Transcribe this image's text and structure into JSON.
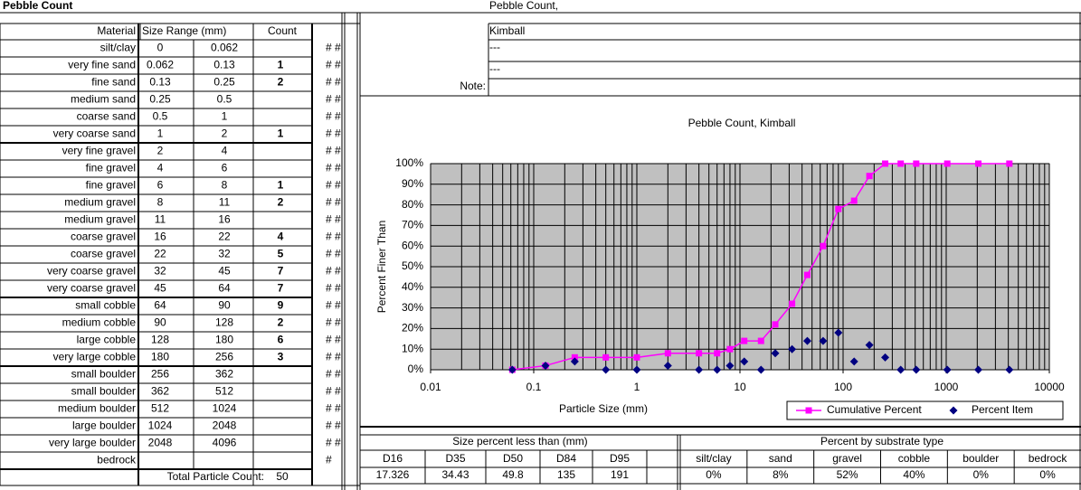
{
  "title": "Pebble Count",
  "table": {
    "header": [
      "Material",
      "Size Range (mm)",
      "Count"
    ],
    "rows": [
      {
        "material": "silt/clay",
        "min": 0,
        "max": 0.062,
        "count": null
      },
      {
        "material": "very fine sand",
        "min": 0.062,
        "max": 0.13,
        "count": 1
      },
      {
        "material": "fine sand",
        "min": 0.13,
        "max": 0.25,
        "count": 2
      },
      {
        "material": "medium sand",
        "min": 0.25,
        "max": 0.5,
        "count": null
      },
      {
        "material": "coarse sand",
        "min": 0.5,
        "max": 1,
        "count": null
      },
      {
        "material": "very coarse sand",
        "min": 1,
        "max": 2,
        "count": 1
      },
      {
        "material": "very fine gravel",
        "min": 2,
        "max": 4,
        "count": null
      },
      {
        "material": "fine gravel",
        "min": 4,
        "max": 6,
        "count": null
      },
      {
        "material": "fine gravel",
        "min": 6,
        "max": 8,
        "count": 1
      },
      {
        "material": "medium gravel",
        "min": 8,
        "max": 11,
        "count": 2
      },
      {
        "material": "medium gravel",
        "min": 11,
        "max": 16,
        "count": null
      },
      {
        "material": "coarse gravel",
        "min": 16,
        "max": 22,
        "count": 4
      },
      {
        "material": "coarse gravel",
        "min": 22,
        "max": 32,
        "count": 5
      },
      {
        "material": "very coarse gravel",
        "min": 32,
        "max": 45,
        "count": 7
      },
      {
        "material": "very coarse gravel",
        "min": 45,
        "max": 64,
        "count": 7
      },
      {
        "material": "small cobble",
        "min": 64,
        "max": 90,
        "count": 9
      },
      {
        "material": "medium cobble",
        "min": 90,
        "max": 128,
        "count": 2
      },
      {
        "material": "large cobble",
        "min": 128,
        "max": 180,
        "count": 6
      },
      {
        "material": "very large cobble",
        "min": 180,
        "max": 256,
        "count": 3
      },
      {
        "material": "small boulder",
        "min": 256,
        "max": 362,
        "count": null
      },
      {
        "material": "small boulder",
        "min": 362,
        "max": 512,
        "count": null
      },
      {
        "material": "medium boulder",
        "min": 512,
        "max": 1024,
        "count": null
      },
      {
        "material": "large boulder",
        "min": 1024,
        "max": 2048,
        "count": null
      },
      {
        "material": "very large boulder",
        "min": 2048,
        "max": 4096,
        "count": null
      },
      {
        "material": "bedrock",
        "min": null,
        "max": null,
        "count": null
      }
    ],
    "marker": "# #",
    "marker_last": "#",
    "total_label": "Total Particle Count:",
    "total": 50
  },
  "site": {
    "title": "Pebble Count,",
    "name": "Kimball",
    "line1": "---",
    "line2": "---",
    "note_label": "Note:"
  },
  "chart_data": {
    "type": "scatter",
    "title": "Pebble Count,  Kimball",
    "x_label": "Particle Size (mm)",
    "y_label": "Percent Finer Than",
    "x": [
      0.062,
      0.13,
      0.25,
      0.5,
      1,
      2,
      4,
      6,
      8,
      11,
      16,
      22,
      32,
      45,
      64,
      90,
      128,
      180,
      256,
      362,
      512,
      1024,
      2048,
      4096
    ],
    "series": [
      {
        "name": "Cumulative Percent",
        "color": "#ff00ff",
        "marker": "square",
        "line": true,
        "values": [
          0,
          2,
          6,
          6,
          6,
          8,
          8,
          8,
          10,
          14,
          14,
          22,
          32,
          46,
          60,
          78,
          82,
          94,
          100,
          100,
          100,
          100,
          100,
          100
        ]
      },
      {
        "name": "Percent Item",
        "color": "#000080",
        "marker": "diamond",
        "line": false,
        "values": [
          0,
          2,
          4,
          0,
          0,
          2,
          0,
          0,
          2,
          4,
          0,
          8,
          10,
          14,
          14,
          18,
          4,
          12,
          6,
          0,
          0,
          0,
          0,
          0
        ]
      }
    ],
    "xlog": true,
    "xlim": [
      0.01,
      10000
    ],
    "xticks": [
      0.01,
      0.1,
      1,
      10,
      100,
      1000,
      10000
    ],
    "ylim": [
      0,
      100
    ],
    "yticks": [
      {
        "value": 0,
        "label": "0%"
      },
      {
        "value": 10,
        "label": "10%"
      },
      {
        "value": 20,
        "label": "20%"
      },
      {
        "value": 30,
        "label": "30%"
      },
      {
        "value": 40,
        "label": "40%"
      },
      {
        "value": 50,
        "label": "50%"
      },
      {
        "value": 60,
        "label": "60%"
      },
      {
        "value": 70,
        "label": "70%"
      },
      {
        "value": 80,
        "label": "80%"
      },
      {
        "value": 90,
        "label": "90%"
      },
      {
        "value": 100,
        "label": "100%"
      }
    ],
    "grid": true,
    "minor_grid": true,
    "legend": "bottom-right"
  },
  "summary": {
    "size_title": "Size percent less than (mm)",
    "size_headers": [
      "D16",
      "D35",
      "D50",
      "D84",
      "D95"
    ],
    "size_values": [
      17.326,
      34.43,
      49.8,
      135,
      191
    ],
    "substrate_title": "Percent by substrate type",
    "substrate_headers": [
      "silt/clay",
      "sand",
      "gravel",
      "cobble",
      "boulder",
      "bedrock"
    ],
    "substrate_values": [
      "0%",
      "8%",
      "52%",
      "40%",
      "0%",
      "0%"
    ]
  }
}
